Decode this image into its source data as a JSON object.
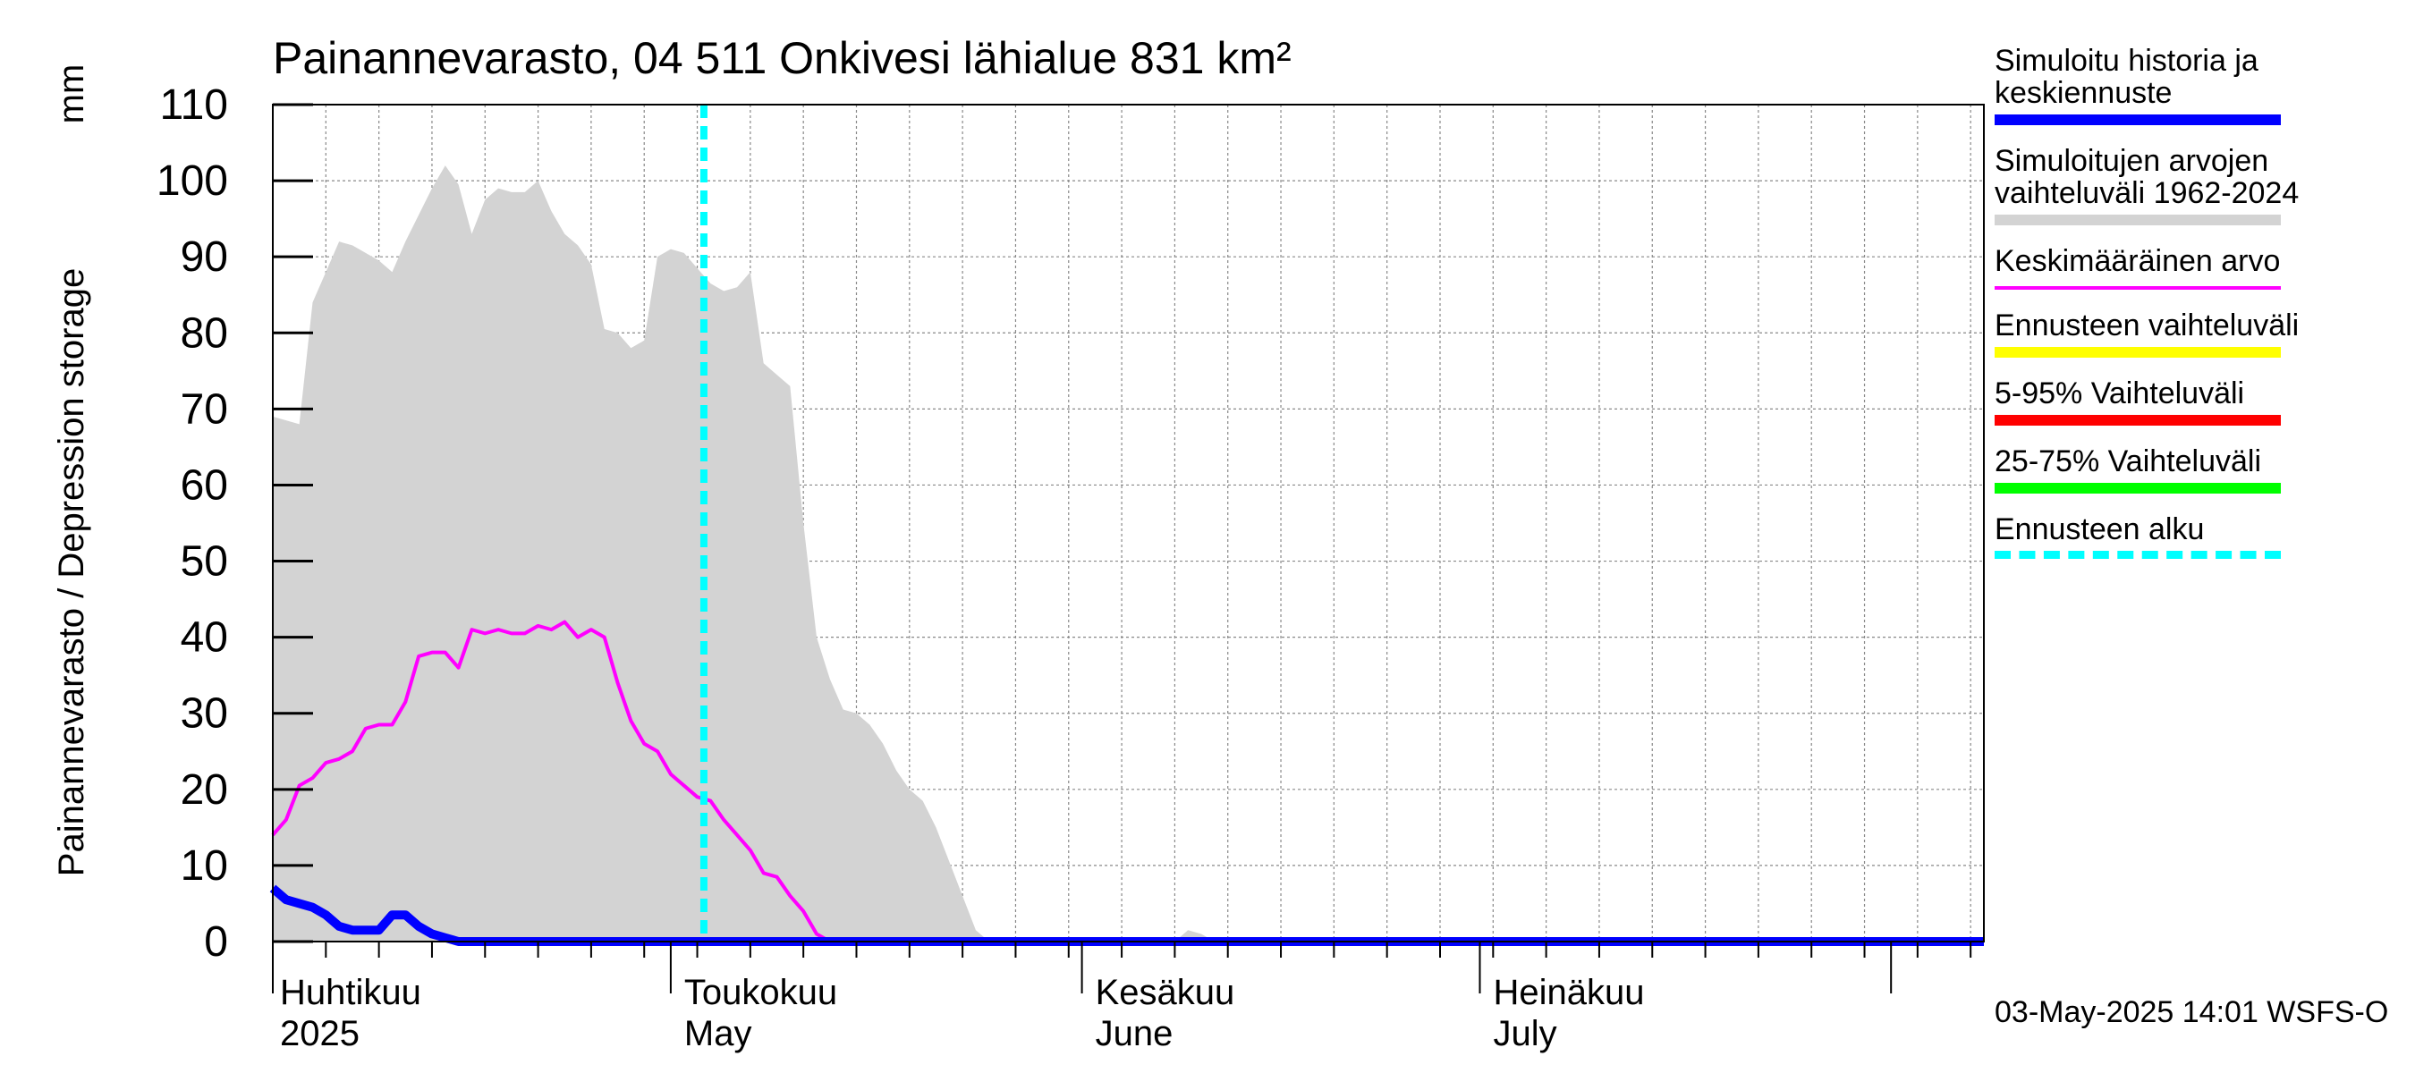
{
  "chart_data": {
    "type": "area",
    "title": "Painannevarasto, 04 511 Onkivesi lähialue 831 km²",
    "ylabel": "Painannevarasto / Depression storage",
    "yunit": "mm",
    "ylim": [
      0,
      110
    ],
    "yticks": [
      "0",
      "10",
      "20",
      "30",
      "40",
      "50",
      "60",
      "70",
      "80",
      "90",
      "100",
      "110"
    ],
    "xlim_days": [
      0,
      129
    ],
    "month_ticks": [
      {
        "day": 0,
        "fi": "",
        "en": ""
      },
      {
        "day": 30,
        "fi": "Toukokuu",
        "en": "May"
      },
      {
        "day": 61,
        "fi": "Kesäkuu",
        "en": "June"
      },
      {
        "day": 91,
        "fi": "Heinäkuu",
        "en": "July"
      },
      {
        "day": 122,
        "fi": "",
        "en": ""
      }
    ],
    "first_month": {
      "fi": "Huhtikuu",
      "year": "2025"
    },
    "forecast_start_day": 32.5,
    "series": [
      {
        "name": "Simuloitujen arvojen vaihteluväli 1962-2024",
        "kind": "band",
        "color": "#d3d3d3",
        "x": [
          0,
          2,
          3,
          4,
          5,
          6,
          7,
          8,
          9,
          10,
          11,
          12,
          13,
          14,
          15,
          16,
          17,
          18,
          19,
          20,
          21,
          22,
          23,
          24,
          25,
          26,
          27,
          28,
          29,
          30,
          31,
          32,
          33,
          34,
          35,
          36,
          37,
          38,
          39,
          40,
          41,
          42,
          43,
          44,
          45,
          46,
          47,
          48,
          49,
          50,
          51,
          52,
          53,
          54,
          55,
          56,
          57,
          58,
          59,
          60,
          61,
          62,
          63,
          64,
          65,
          66,
          67,
          68,
          69,
          70,
          71,
          72,
          129
        ],
        "upper": [
          69,
          68,
          84,
          88,
          92,
          91.5,
          90.5,
          89.5,
          88,
          92,
          95.5,
          99,
          102,
          99.5,
          93,
          97.5,
          99,
          98.5,
          98.5,
          100,
          96,
          93,
          91.5,
          89,
          80.5,
          80,
          78,
          79,
          90,
          91,
          90.5,
          88.5,
          86.5,
          85.5,
          86,
          88,
          76,
          74.5,
          73,
          55,
          40,
          34.5,
          30.5,
          30,
          28.5,
          26,
          22.5,
          20,
          18.5,
          15,
          10.5,
          6,
          1.5,
          0,
          0,
          0,
          0,
          0,
          0,
          0,
          0,
          0,
          0,
          0,
          0,
          0,
          0,
          0,
          1.5,
          1,
          0,
          0,
          0
        ],
        "lower": [
          0,
          0,
          0,
          0,
          0,
          0,
          0,
          0,
          0,
          0,
          0,
          0,
          0,
          0,
          0,
          0,
          0,
          0,
          0,
          0,
          0,
          0,
          0,
          0,
          0,
          0,
          0,
          0,
          0,
          0,
          0,
          0,
          0,
          0,
          0,
          0,
          0,
          0,
          0,
          0,
          0,
          0,
          0,
          0,
          0,
          0,
          0,
          0,
          0,
          0,
          0,
          0,
          0,
          0,
          0,
          0,
          0,
          0,
          0,
          0,
          0,
          0,
          0,
          0,
          0,
          0,
          0,
          0,
          0,
          0,
          0,
          0,
          0
        ]
      },
      {
        "name": "Keskimääräinen arvo",
        "kind": "line",
        "color": "#ff00ff",
        "x": [
          0,
          1,
          2,
          3,
          4,
          5,
          6,
          7,
          8,
          9,
          10,
          11,
          12,
          13,
          14,
          15,
          16,
          17,
          18,
          19,
          20,
          21,
          22,
          23,
          24,
          25,
          26,
          27,
          28,
          29,
          30,
          31,
          32,
          33,
          34,
          35,
          36,
          37,
          38,
          39,
          40,
          41,
          42,
          43,
          44,
          45,
          129
        ],
        "y": [
          14,
          16,
          20.5,
          21.5,
          23.5,
          24,
          25,
          28,
          28.5,
          28.5,
          31.5,
          37.5,
          38,
          38,
          36,
          41,
          40.5,
          41,
          40.5,
          40.5,
          41.5,
          41,
          42,
          40,
          41,
          40,
          34,
          29,
          26,
          25,
          22,
          20.5,
          19,
          18.5,
          16,
          14,
          12,
          9,
          8.5,
          6,
          4,
          1,
          0,
          0,
          0,
          0,
          0
        ]
      },
      {
        "name": "Simuloitu historia ja keskiennuste",
        "kind": "line",
        "color": "#0000ff",
        "x": [
          0,
          1,
          2,
          3,
          4,
          5,
          6,
          7,
          8,
          9,
          10,
          11,
          12,
          13,
          14,
          15,
          16,
          17,
          129
        ],
        "y": [
          7,
          5.5,
          5,
          4.5,
          3.5,
          2,
          1.5,
          1.5,
          1.5,
          3.5,
          3.5,
          2,
          1,
          0.5,
          0,
          0,
          0,
          0,
          0
        ]
      }
    ]
  },
  "legend": [
    {
      "label": "Simuloitu historia ja\nkeskiennuste",
      "color": "#0000ff",
      "style": "solid"
    },
    {
      "label": "Simuloitujen arvojen\nvaihteluväli 1962-2024",
      "color": "#d3d3d3",
      "style": "solid"
    },
    {
      "label": "Keskimääräinen arvo",
      "color": "#ff00ff",
      "style": "thin"
    },
    {
      "label": "Ennusteen vaihteluväli",
      "color": "#ffff00",
      "style": "solid"
    },
    {
      "label": "5-95% Vaihteluväli",
      "color": "#ff0000",
      "style": "solid"
    },
    {
      "label": "25-75% Vaihteluväli",
      "color": "#00ff00",
      "style": "solid"
    },
    {
      "label": "Ennusteen alku",
      "color": "#00ffff",
      "style": "dashed"
    }
  ],
  "footer": "03-May-2025 14:01 WSFS-O"
}
